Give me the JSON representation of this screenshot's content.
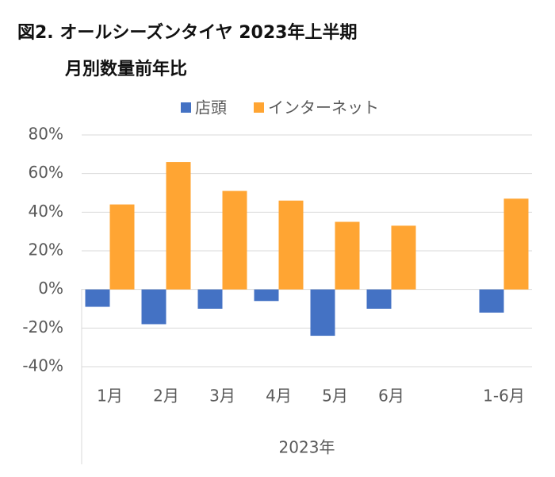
{
  "chart_data": {
    "type": "bar",
    "title": "図2. オールシーズンタイヤ 2023年上半期",
    "subtitle": "月別数量前年比",
    "x_label": "2023年",
    "categories": [
      "1月",
      "2月",
      "3月",
      "4月",
      "5月",
      "6月",
      null,
      "1-6月"
    ],
    "series": [
      {
        "name": "店頭",
        "color": "#4472c4",
        "values": [
          -9,
          -18,
          -10,
          -6,
          -24,
          -10,
          null,
          -12
        ]
      },
      {
        "name": "インターネット",
        "color": "#ffa533",
        "values": [
          44,
          66,
          51,
          46,
          35,
          33,
          null,
          47
        ]
      }
    ],
    "ylim": [
      -40,
      80
    ],
    "yticks": [
      {
        "value": -40,
        "label": "-40%"
      },
      {
        "value": -20,
        "label": "-20%"
      },
      {
        "value": 0,
        "label": "0%"
      },
      {
        "value": 20,
        "label": "20%"
      },
      {
        "value": 40,
        "label": "40%"
      },
      {
        "value": 60,
        "label": "60%"
      },
      {
        "value": 80,
        "label": "80%"
      }
    ],
    "grid": true,
    "legend": "top"
  }
}
